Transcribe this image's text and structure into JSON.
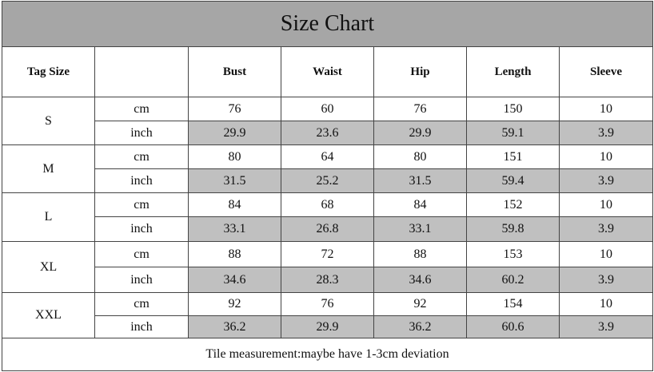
{
  "title": "Size Chart",
  "header": [
    "Tag Size",
    "Bust",
    "Waist",
    "Hip",
    "Length",
    "Sleeve"
  ],
  "rows": [
    {
      "size": "S",
      "units": [
        {
          "unit": "cm",
          "values": [
            76,
            60,
            76,
            150,
            10
          ]
        },
        {
          "unit": "inch",
          "values": [
            29.9,
            23.6,
            29.9,
            59.1,
            3.9
          ]
        }
      ]
    },
    {
      "size": "M",
      "units": [
        {
          "unit": "cm",
          "values": [
            80,
            64,
            80,
            151,
            10
          ]
        },
        {
          "unit": "inch",
          "values": [
            31.5,
            25.2,
            31.5,
            59.4,
            3.9
          ]
        }
      ]
    },
    {
      "size": "L",
      "units": [
        {
          "unit": "cm",
          "values": [
            84,
            68,
            84,
            152,
            10
          ]
        },
        {
          "unit": "inch",
          "values": [
            33.1,
            26.8,
            33.1,
            59.8,
            3.9
          ]
        }
      ]
    },
    {
      "size": "XL",
      "units": [
        {
          "unit": "cm",
          "values": [
            88,
            72,
            88,
            153,
            10
          ]
        },
        {
          "unit": "inch",
          "values": [
            34.6,
            28.3,
            34.6,
            60.2,
            3.9
          ]
        }
      ]
    },
    {
      "size": "XXL",
      "units": [
        {
          "unit": "cm",
          "values": [
            92,
            76,
            92,
            154,
            10
          ]
        },
        {
          "unit": "inch",
          "values": [
            36.2,
            29.9,
            36.2,
            60.6,
            3.9
          ]
        }
      ]
    }
  ],
  "note": "Tile measurement:maybe have 1-3cm deviation"
}
